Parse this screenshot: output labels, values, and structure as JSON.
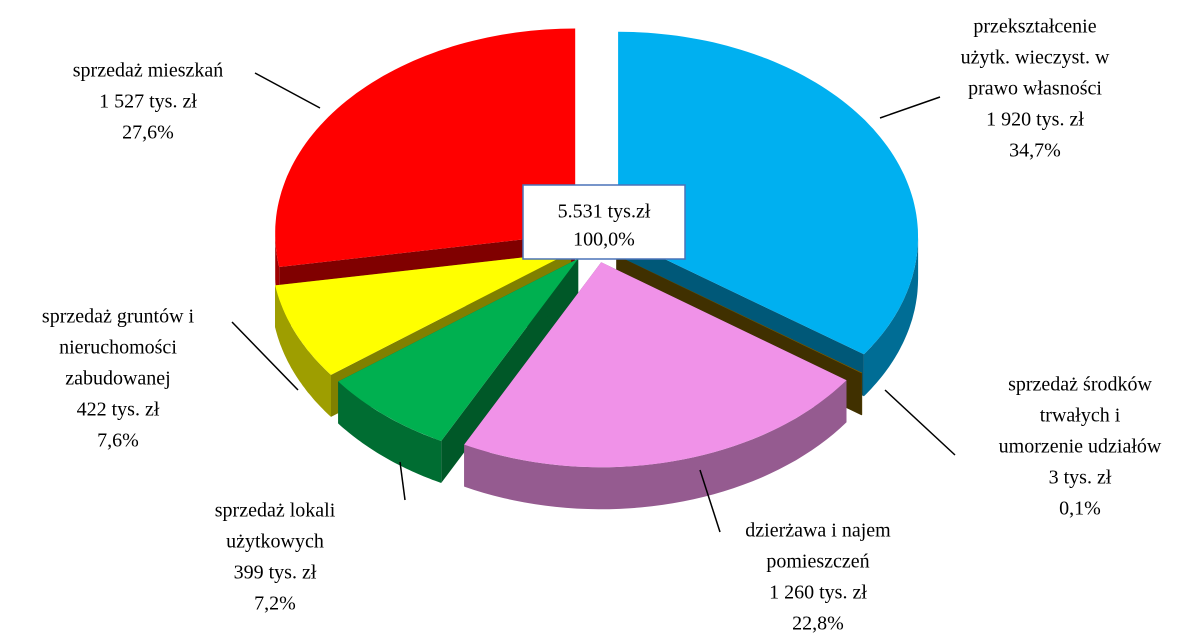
{
  "chart_data": {
    "type": "pie3d",
    "categories": [
      [
        "przekształcenie",
        "użytk. wieczyst. w",
        "prawo własności"
      ],
      [
        "sprzedaż środków",
        "trwałych i",
        "umorzenie udziałów"
      ],
      [
        "dzierżawa i najem",
        "pomieszczeń"
      ],
      [
        "sprzedaż lokali",
        "użytkowych"
      ],
      [
        "sprzedaż gruntów i",
        "nieruchomości",
        "zabudowanej"
      ],
      [
        "sprzedaż mieszkań"
      ]
    ],
    "values": [
      1920,
      3,
      1260,
      399,
      422,
      1527
    ],
    "value_labels": [
      "1 920 tys. zł",
      "3 tys. zł",
      "1 260 tys. zł",
      "399 tys. zł",
      "422 tys. zł",
      "1 527 tys. zł"
    ],
    "percents": [
      34.7,
      0.1,
      22.8,
      7.2,
      7.6,
      27.6
    ],
    "percent_labels": [
      "34,7%",
      "0,1%",
      "22,8%",
      "7,2%",
      "7,6%",
      "27,6%"
    ],
    "colors": [
      "#00b0f0",
      "#7f6000",
      "#f092e8",
      "#00b050",
      "#ffff00",
      "#ff0000"
    ],
    "total": 5531,
    "total_label": "5.531 tys.zł",
    "total_percent": 100.0,
    "total_percent_label": "100,0%"
  }
}
